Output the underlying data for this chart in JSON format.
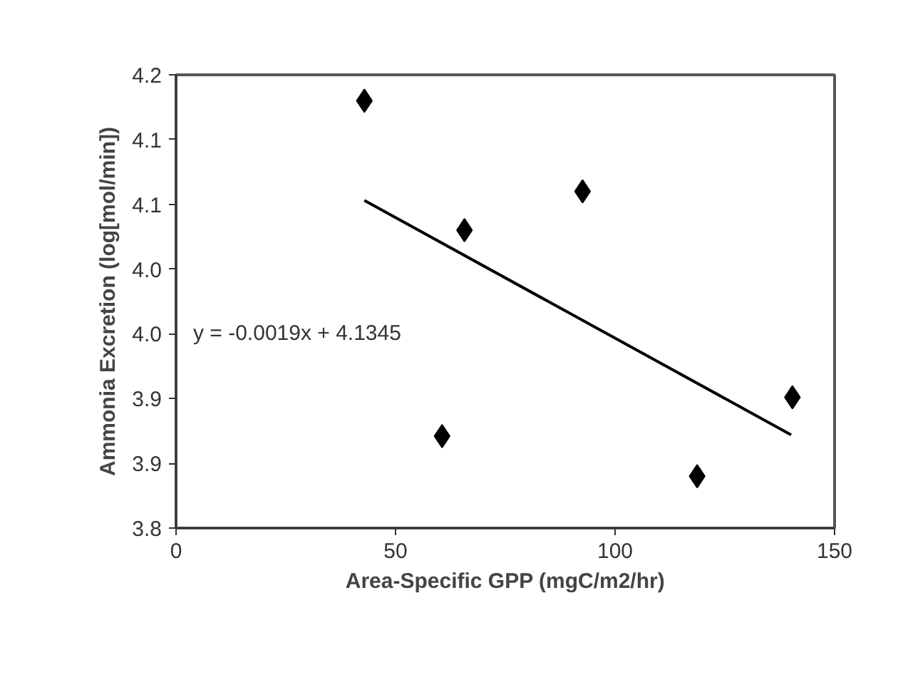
{
  "chart_data": {
    "type": "scatter",
    "xlabel": "Area-Specific GPP (mgC/m2/hr)",
    "ylabel": "Ammonia Excretion (log[mol/min])",
    "annotations": [
      "y = -0.0019x + 4.1345"
    ],
    "xlim": [
      0,
      150
    ],
    "xticks": [
      0,
      50,
      100,
      150
    ],
    "ylim": [
      3.8,
      4.15
    ],
    "yticks": [
      {
        "value": 3.8,
        "label": "3.8"
      },
      {
        "value": 3.85,
        "label": "3.9"
      },
      {
        "value": 3.9,
        "label": "3.9"
      },
      {
        "value": 3.95,
        "label": "4.0"
      },
      {
        "value": 4.0,
        "label": "4.0"
      },
      {
        "value": 4.05,
        "label": "4.1"
      },
      {
        "value": 4.1,
        "label": "4.1"
      },
      {
        "value": 4.15,
        "label": "4.2"
      }
    ],
    "grid": false,
    "marker": "diamond",
    "series": [
      {
        "color": "#000000",
        "x": [
          42.9,
          60.6,
          65.7,
          92.6,
          118.7,
          140.4
        ],
        "values": [
          4.13,
          3.871,
          4.03,
          4.06,
          3.84,
          3.901
        ]
      },
      {
        "type": "line",
        "color": "#000000",
        "marker": "none",
        "x": [
          42.9,
          140.1
        ],
        "values": [
          4.053,
          3.872
        ]
      }
    ]
  }
}
